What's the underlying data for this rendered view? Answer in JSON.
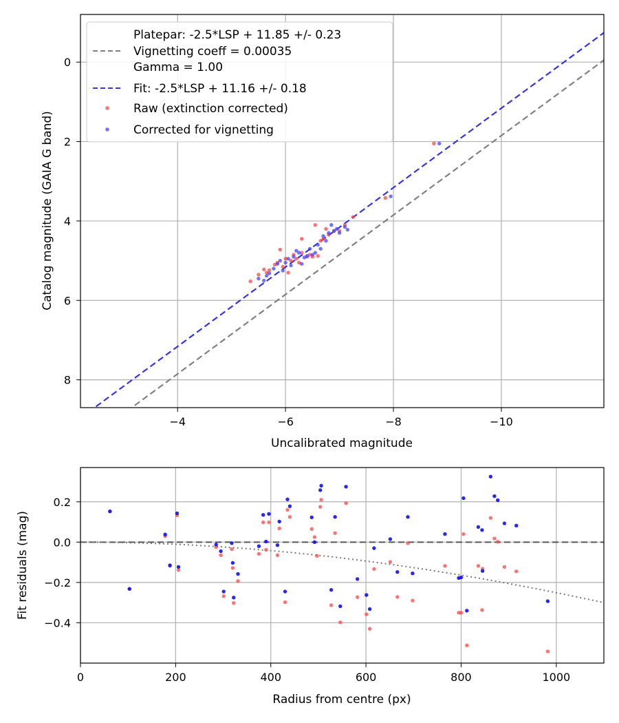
{
  "chart_data": [
    {
      "type": "scatter",
      "xlabel": "Uncalibrated magnitude",
      "ylabel": "Catalog magnitude (GAIA G band)",
      "xlim": [
        -2.2,
        -11.9
      ],
      "ylim": [
        8.7,
        -1.2
      ],
      "x_ticks": [
        -4,
        -6,
        -8,
        -10
      ],
      "x_tick_labels": [
        "−4",
        "−6",
        "−8",
        "−10"
      ],
      "y_ticks": [
        0,
        2,
        4,
        6,
        8
      ],
      "y_tick_labels": [
        "0",
        "2",
        "4",
        "6",
        "8"
      ],
      "grid": true,
      "legend_position": "top-left",
      "legend": [
        {
          "label": "Platepar: -2.5*LSP + 11.85 +/- 0.23",
          "style": "none"
        },
        {
          "label": "Vignetting coeff = 0.00035",
          "style": "dashed",
          "color": "#808080"
        },
        {
          "label": "Gamma = 1.00",
          "style": "none"
        },
        {
          "label": "Fit: -2.5*LSP + 11.16 +/- 0.18",
          "style": "dashed",
          "color": "#3333ee"
        },
        {
          "label": "Raw (extinction corrected)",
          "style": "marker",
          "color": "#ff4444"
        },
        {
          "label": "Corrected for vignetting",
          "style": "marker",
          "color": "#4444ff"
        }
      ],
      "lines": [
        {
          "name": "Platepar",
          "slope": 1,
          "intercept": 11.85,
          "color": "#808080"
        },
        {
          "name": "Fit",
          "slope": 1,
          "intercept": 11.16,
          "color": "#3333ee"
        }
      ],
      "series": [
        {
          "name": "Raw (extinction corrected)",
          "color": "#ff4444",
          "points": [
            [
              -5.35,
              5.52
            ],
            [
              -5.5,
              5.35
            ],
            [
              -5.6,
              5.22
            ],
            [
              -5.65,
              5.3
            ],
            [
              -5.7,
              5.24
            ],
            [
              -5.8,
              5.1
            ],
            [
              -5.85,
              5.05
            ],
            [
              -5.9,
              4.72
            ],
            [
              -5.95,
              5.15
            ],
            [
              -6.0,
              4.95
            ],
            [
              -6.05,
              5.3
            ],
            [
              -6.1,
              5.0
            ],
            [
              -6.15,
              4.85
            ],
            [
              -6.2,
              4.95
            ],
            [
              -6.25,
              5.05
            ],
            [
              -6.3,
              4.8
            ],
            [
              -6.3,
              4.45
            ],
            [
              -6.4,
              4.9
            ],
            [
              -6.45,
              4.85
            ],
            [
              -6.5,
              4.9
            ],
            [
              -6.55,
              4.1
            ],
            [
              -6.6,
              4.88
            ],
            [
              -6.65,
              4.5
            ],
            [
              -6.7,
              4.45
            ],
            [
              -6.75,
              4.2
            ],
            [
              -6.8,
              4.35
            ],
            [
              -6.9,
              4.25
            ],
            [
              -7.0,
              4.25
            ],
            [
              -7.1,
              4.1
            ],
            [
              -7.25,
              3.9
            ],
            [
              -7.85,
              3.42
            ],
            [
              -8.75,
              2.05
            ]
          ]
        },
        {
          "name": "Corrected for vignetting",
          "color": "#4444ff",
          "points": [
            [
              -5.5,
              5.45
            ],
            [
              -5.6,
              5.5
            ],
            [
              -5.65,
              5.38
            ],
            [
              -5.7,
              5.32
            ],
            [
              -5.78,
              5.2
            ],
            [
              -5.85,
              5.08
            ],
            [
              -5.9,
              5.0
            ],
            [
              -5.95,
              5.25
            ],
            [
              -6.0,
              5.05
            ],
            [
              -6.05,
              4.95
            ],
            [
              -6.1,
              5.12
            ],
            [
              -6.15,
              4.9
            ],
            [
              -6.2,
              4.75
            ],
            [
              -6.25,
              4.8
            ],
            [
              -6.3,
              5.08
            ],
            [
              -6.35,
              4.92
            ],
            [
              -6.4,
              4.88
            ],
            [
              -6.45,
              4.7
            ],
            [
              -6.5,
              4.85
            ],
            [
              -6.55,
              4.8
            ],
            [
              -6.6,
              4.6
            ],
            [
              -6.65,
              4.7
            ],
            [
              -6.7,
              4.38
            ],
            [
              -6.75,
              4.5
            ],
            [
              -6.8,
              4.3
            ],
            [
              -6.85,
              4.1
            ],
            [
              -6.9,
              4.25
            ],
            [
              -6.95,
              4.2
            ],
            [
              -7.0,
              4.3
            ],
            [
              -7.1,
              4.15
            ],
            [
              -7.15,
              4.22
            ],
            [
              -7.95,
              3.38
            ],
            [
              -8.85,
              2.05
            ]
          ]
        }
      ]
    },
    {
      "type": "scatter",
      "xlabel": "Radius from centre (px)",
      "ylabel": "Fit residuals (mag)",
      "xlim": [
        0,
        1100
      ],
      "ylim": [
        -0.6,
        0.37
      ],
      "x_ticks": [
        0,
        200,
        400,
        600,
        800,
        1000
      ],
      "x_tick_labels": [
        "0",
        "200",
        "400",
        "600",
        "800",
        "1000"
      ],
      "y_ticks": [
        -0.4,
        -0.2,
        0.0,
        0.2
      ],
      "y_tick_labels": [
        "−0.4",
        "−0.2",
        "0.0",
        "0.2"
      ],
      "grid": true,
      "zero_line": {
        "value": 0.0,
        "style": "dashed",
        "color": "#555555"
      },
      "vignetting_curve": {
        "style": "dotted",
        "color": "#777777",
        "coeff": 0.00035
      },
      "series": [
        {
          "name": "Raw (extinction corrected)",
          "color": "#ff4444",
          "points": [
            [
              62,
              0.152
            ],
            [
              103,
              -0.232
            ],
            [
              178,
              0.03
            ],
            [
              188,
              -0.118
            ],
            [
              203,
              0.133
            ],
            [
              206,
              -0.138
            ],
            [
              285,
              -0.025
            ],
            [
              295,
              -0.065
            ],
            [
              301,
              -0.268
            ],
            [
              318,
              -0.035
            ],
            [
              320,
              -0.128
            ],
            [
              322,
              -0.302
            ],
            [
              331,
              -0.193
            ],
            [
              375,
              -0.058
            ],
            [
              384,
              0.098
            ],
            [
              390,
              -0.038
            ],
            [
              396,
              0.098
            ],
            [
              414,
              -0.065
            ],
            [
              418,
              0.068
            ],
            [
              430,
              -0.298
            ],
            [
              435,
              0.16
            ],
            [
              440,
              0.125
            ],
            [
              486,
              0.065
            ],
            [
              492,
              0.025
            ],
            [
              497,
              -0.068
            ],
            [
              504,
              0.175
            ],
            [
              506,
              0.21
            ],
            [
              527,
              -0.313
            ],
            [
              535,
              0.045
            ],
            [
              546,
              -0.398
            ],
            [
              558,
              0.193
            ],
            [
              582,
              -0.273
            ],
            [
              601,
              -0.358
            ],
            [
              608,
              -0.43
            ],
            [
              617,
              -0.133
            ],
            [
              651,
              -0.098
            ],
            [
              666,
              -0.272
            ],
            [
              688,
              -0.005
            ],
            [
              698,
              -0.29
            ],
            [
              766,
              -0.118
            ],
            [
              795,
              -0.35
            ],
            [
              800,
              -0.35
            ],
            [
              805,
              0.04
            ],
            [
              812,
              -0.512
            ],
            [
              836,
              -0.118
            ],
            [
              844,
              -0.337
            ],
            [
              845,
              -0.132
            ],
            [
              862,
              0.12
            ],
            [
              870,
              0.018
            ],
            [
              877,
              0.002
            ],
            [
              891,
              -0.123
            ],
            [
              916,
              -0.145
            ],
            [
              982,
              -0.542
            ]
          ]
        },
        {
          "name": "Corrected for vignetting",
          "color": "#1111ee",
          "points": [
            [
              62,
              0.153
            ],
            [
              103,
              -0.232
            ],
            [
              178,
              0.038
            ],
            [
              188,
              -0.115
            ],
            [
              203,
              0.143
            ],
            [
              206,
              -0.123
            ],
            [
              285,
              -0.012
            ],
            [
              295,
              -0.045
            ],
            [
              301,
              -0.245
            ],
            [
              318,
              -0.005
            ],
            [
              320,
              -0.103
            ],
            [
              322,
              -0.275
            ],
            [
              331,
              -0.158
            ],
            [
              375,
              -0.02
            ],
            [
              384,
              0.135
            ],
            [
              390,
              0.003
            ],
            [
              396,
              0.14
            ],
            [
              414,
              -0.015
            ],
            [
              418,
              0.102
            ],
            [
              430,
              -0.245
            ],
            [
              435,
              0.212
            ],
            [
              440,
              0.178
            ],
            [
              486,
              0.123
            ],
            [
              492,
              0.0
            ],
            [
              504,
              0.258
            ],
            [
              506,
              0.28
            ],
            [
              527,
              -0.237
            ],
            [
              535,
              0.125
            ],
            [
              546,
              -0.318
            ],
            [
              558,
              0.275
            ],
            [
              582,
              -0.183
            ],
            [
              601,
              -0.262
            ],
            [
              608,
              -0.332
            ],
            [
              617,
              -0.03
            ],
            [
              651,
              0.015
            ],
            [
              666,
              -0.148
            ],
            [
              688,
              0.125
            ],
            [
              698,
              -0.155
            ],
            [
              766,
              0.04
            ],
            [
              795,
              -0.178
            ],
            [
              800,
              -0.175
            ],
            [
              805,
              0.218
            ],
            [
              812,
              -0.34
            ],
            [
              836,
              0.075
            ],
            [
              844,
              0.06
            ],
            [
              845,
              -0.143
            ],
            [
              862,
              0.325
            ],
            [
              870,
              0.228
            ],
            [
              877,
              0.208
            ],
            [
              891,
              0.093
            ],
            [
              916,
              0.082
            ],
            [
              982,
              -0.293
            ]
          ]
        }
      ]
    }
  ]
}
